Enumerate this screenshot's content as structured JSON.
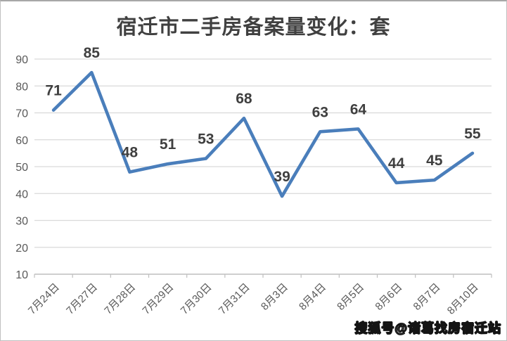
{
  "window": {
    "background": "#ffffff",
    "border_color": "#c0c0c0"
  },
  "chart_data": {
    "type": "line",
    "title": "宿迁市二手房备案量变化：套",
    "categories": [
      "7月24日",
      "7月27日",
      "7月28日",
      "7月29日",
      "7月30日",
      "7月31日",
      "8月3日",
      "8月4日",
      "8月5日",
      "8月6日",
      "8月7日",
      "8月10日"
    ],
    "values": [
      71,
      85,
      48,
      51,
      53,
      68,
      39,
      63,
      64,
      44,
      45,
      55
    ],
    "xlabel": "",
    "ylabel": "",
    "ylim": [
      10,
      90
    ],
    "yticks": [
      10,
      20,
      30,
      40,
      50,
      60,
      70,
      80,
      90
    ],
    "grid": true,
    "legend": "none",
    "data_labels": true,
    "colors": {
      "line": "#4a7ebb",
      "gridline": "#d9d9d9",
      "axis_line": "#bfbfbf",
      "tick_label": "#595959",
      "data_label": "#3f3f3f",
      "title": "#404040"
    }
  },
  "watermark": {
    "text": "搜狐号@诸葛找房宿迁站",
    "fill": "#ffffff",
    "outline": "#141414"
  }
}
